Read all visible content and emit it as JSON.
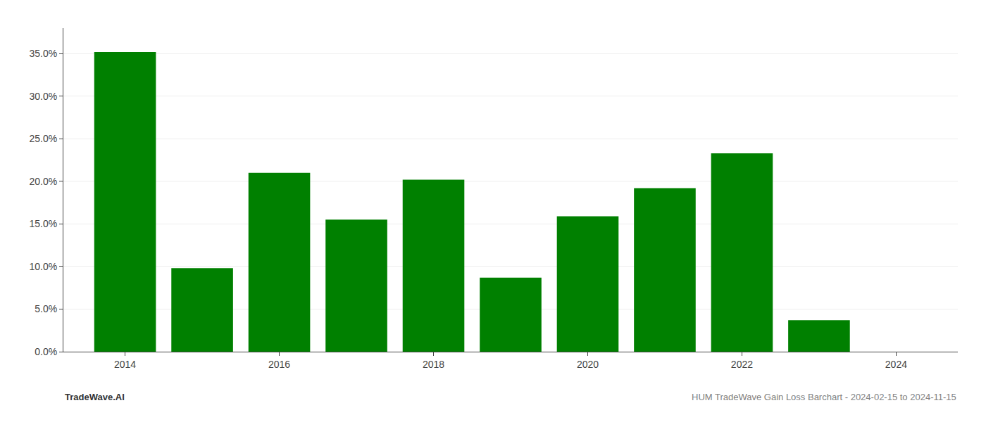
{
  "chart_data": {
    "type": "bar",
    "title": "HUM TradeWave Gain Loss Barchart - 2024-02-15 to 2024-11-15",
    "annotations": [
      "TradeWave.AI"
    ],
    "x": [
      2014,
      2015,
      2016,
      2017,
      2018,
      2019,
      2020,
      2021,
      2022,
      2023
    ],
    "values": [
      0.352,
      0.098,
      0.21,
      0.155,
      0.202,
      0.087,
      0.159,
      0.192,
      0.233,
      0.037
    ],
    "color": "#008000",
    "xlim": [
      2013.2,
      2024.8
    ],
    "xticks": [
      2014,
      2016,
      2018,
      2020,
      2022,
      2024
    ],
    "ylim": [
      0.0,
      0.38
    ],
    "yticks": [
      {
        "value": 0.0,
        "label": "0.0%"
      },
      {
        "value": 0.05,
        "label": "5.0%"
      },
      {
        "value": 0.1,
        "label": "10.0%"
      },
      {
        "value": 0.15,
        "label": "15.0%"
      },
      {
        "value": 0.2,
        "label": "20.0%"
      },
      {
        "value": 0.25,
        "label": "25.0%"
      },
      {
        "value": 0.3,
        "label": "30.0%"
      },
      {
        "value": 0.35,
        "label": "35.0%"
      }
    ],
    "grid": true
  }
}
